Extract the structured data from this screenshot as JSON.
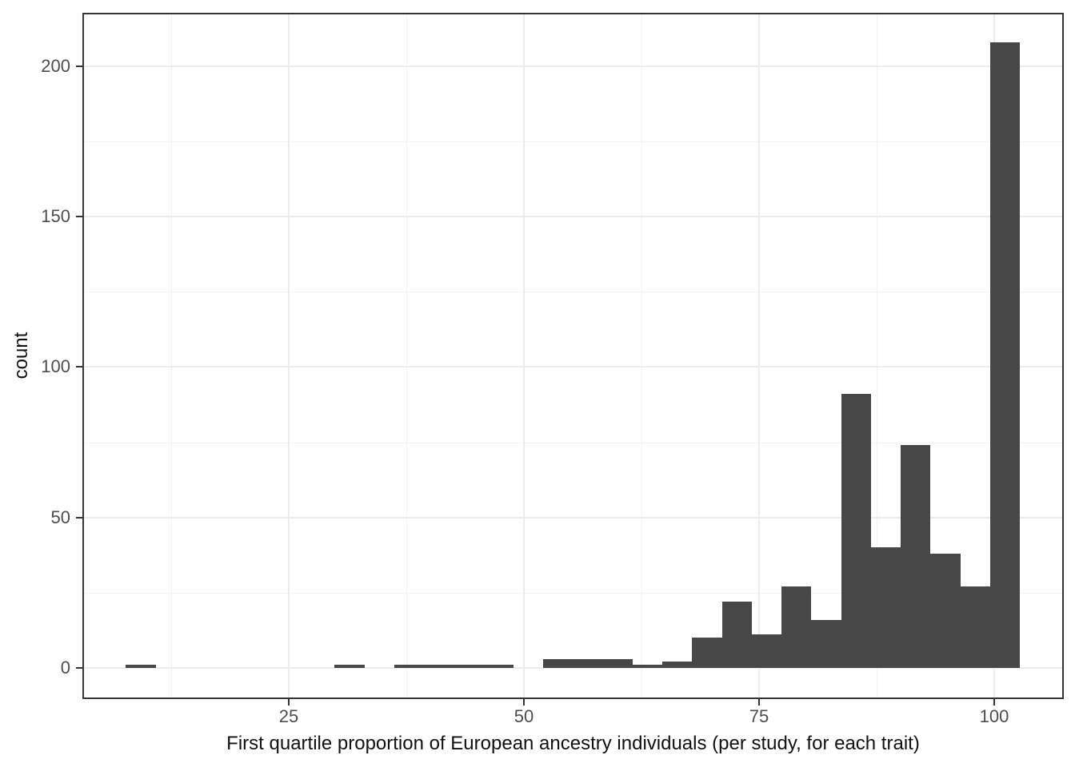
{
  "chart_data": {
    "type": "bar",
    "subtype": "histogram",
    "title": "",
    "xlabel": "First quartile proportion of European ancestry individuals (per study, for each trait)",
    "ylabel": "count",
    "xlim": [
      3.07,
      107.37
    ],
    "ylim": [
      -10.4,
      217.8
    ],
    "grid": "on",
    "legend": "none",
    "bin_width": 3.17,
    "bins": [
      {
        "x0": 7.7,
        "x1": 10.87,
        "count": 1
      },
      {
        "x0": 29.87,
        "x1": 33.04,
        "count": 1
      },
      {
        "x0": 36.2,
        "x1": 39.37,
        "count": 1
      },
      {
        "x0": 39.37,
        "x1": 42.54,
        "count": 1
      },
      {
        "x0": 42.54,
        "x1": 45.71,
        "count": 1
      },
      {
        "x0": 45.71,
        "x1": 48.87,
        "count": 1
      },
      {
        "x0": 52.04,
        "x1": 55.21,
        "count": 3
      },
      {
        "x0": 55.21,
        "x1": 58.37,
        "count": 3
      },
      {
        "x0": 58.37,
        "x1": 61.54,
        "count": 3
      },
      {
        "x0": 61.54,
        "x1": 64.71,
        "count": 1
      },
      {
        "x0": 64.71,
        "x1": 67.87,
        "count": 2
      },
      {
        "x0": 67.87,
        "x1": 71.04,
        "count": 10
      },
      {
        "x0": 71.04,
        "x1": 74.21,
        "count": 22
      },
      {
        "x0": 74.21,
        "x1": 77.37,
        "count": 11
      },
      {
        "x0": 77.37,
        "x1": 80.54,
        "count": 27
      },
      {
        "x0": 80.54,
        "x1": 83.71,
        "count": 16
      },
      {
        "x0": 83.71,
        "x1": 86.87,
        "count": 91
      },
      {
        "x0": 86.87,
        "x1": 90.04,
        "count": 40
      },
      {
        "x0": 90.04,
        "x1": 93.21,
        "count": 74
      },
      {
        "x0": 93.21,
        "x1": 96.37,
        "count": 38
      },
      {
        "x0": 96.37,
        "x1": 99.54,
        "count": 27
      },
      {
        "x0": 99.54,
        "x1": 102.71,
        "count": 208
      }
    ],
    "x_ticks": {
      "values": [
        25,
        50,
        75,
        100
      ],
      "labels": [
        "25",
        "50",
        "75",
        "100"
      ]
    },
    "y_ticks": {
      "values": [
        0,
        50,
        100,
        150,
        200
      ],
      "labels": [
        "0",
        "50",
        "100",
        "150",
        "200"
      ]
    },
    "x_minor_gridlines": [
      12.5,
      37.5,
      62.5,
      87.5
    ],
    "y_minor_gridlines": [
      25,
      75,
      125,
      175
    ],
    "colors": {
      "bar_fill": "#474747",
      "grid_major": "#EBEBEB",
      "grid_minor": "#F3F3F3",
      "panel_border": "#333333",
      "tick_mark": "#333333",
      "tick_text": "#4D4D4D",
      "title_text": "#111111",
      "background": "#FFFFFF"
    }
  }
}
